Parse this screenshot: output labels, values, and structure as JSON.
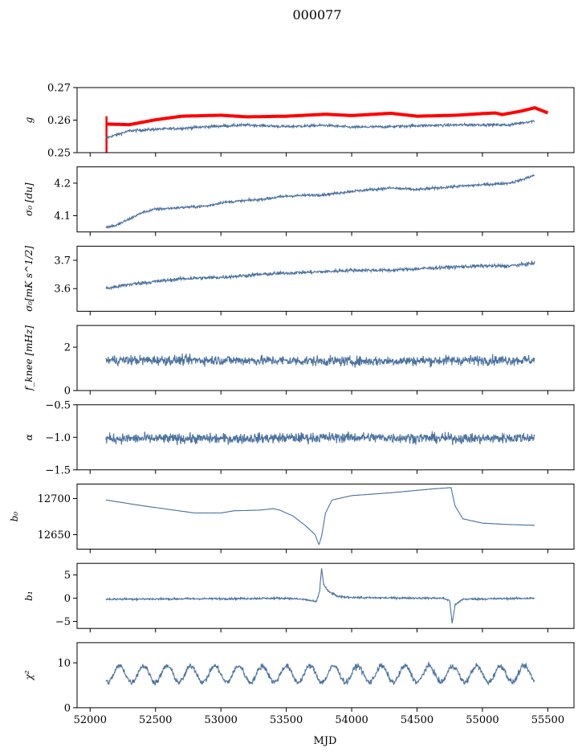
{
  "chart_data": {
    "type": "line",
    "title": "000077",
    "xlabel": "MJD",
    "xlim": [
      51900,
      55700
    ],
    "xticks": [
      52000,
      52500,
      53000,
      53500,
      54000,
      54500,
      55000,
      55500
    ],
    "x_range": [
      52120,
      55400
    ],
    "line_color": "#4c72a0",
    "highlight_color": "#ff0000",
    "panels": [
      {
        "id": "g",
        "ylabel": "g",
        "ylim": [
          0.25,
          0.27
        ],
        "yticks": [
          "0.25",
          "0.26",
          "0.27"
        ],
        "series": [
          {
            "name": "",
            "color": "#ff0000",
            "kind": "thick",
            "points": [
              [
                52120,
                0.2588
              ],
              [
                52300,
                0.2586
              ],
              [
                52500,
                0.2601
              ],
              [
                52700,
                0.2612
              ],
              [
                53000,
                0.2615
              ],
              [
                53200,
                0.261
              ],
              [
                53500,
                0.2612
              ],
              [
                53800,
                0.2618
              ],
              [
                54000,
                0.2614
              ],
              [
                54300,
                0.2621
              ],
              [
                54500,
                0.2612
              ],
              [
                54800,
                0.2615
              ],
              [
                55000,
                0.262
              ],
              [
                55100,
                0.2622
              ],
              [
                55150,
                0.2617
              ],
              [
                55300,
                0.2628
              ],
              [
                55400,
                0.2638
              ],
              [
                55500,
                0.2622
              ]
            ]
          },
          {
            "name": "",
            "color": "#4c72a0",
            "kind": "noisy",
            "noise": 0.0004,
            "points": [
              [
                52120,
                0.2545
              ],
              [
                52300,
                0.2567
              ],
              [
                52500,
                0.2572
              ],
              [
                52700,
                0.2575
              ],
              [
                53000,
                0.2582
              ],
              [
                53200,
                0.2585
              ],
              [
                53500,
                0.258
              ],
              [
                53800,
                0.2584
              ],
              [
                54000,
                0.2578
              ],
              [
                54300,
                0.258
              ],
              [
                54500,
                0.2583
              ],
              [
                54800,
                0.2585
              ],
              [
                55000,
                0.2586
              ],
              [
                55200,
                0.2585
              ],
              [
                55400,
                0.2598
              ]
            ]
          }
        ]
      },
      {
        "id": "sigma0-du",
        "ylabel": "σ₀ [du]",
        "ylim": [
          4.05,
          4.25
        ],
        "yticks": [
          "4.1",
          "4.2"
        ],
        "series": [
          {
            "name": "",
            "color": "#4c72a0",
            "kind": "noisy",
            "noise": 0.004,
            "points": [
              [
                52120,
                4.065
              ],
              [
                52200,
                4.07
              ],
              [
                52300,
                4.09
              ],
              [
                52400,
                4.11
              ],
              [
                52500,
                4.12
              ],
              [
                52700,
                4.125
              ],
              [
                52900,
                4.13
              ],
              [
                53000,
                4.14
              ],
              [
                53300,
                4.15
              ],
              [
                53500,
                4.16
              ],
              [
                53800,
                4.165
              ],
              [
                54000,
                4.175
              ],
              [
                54300,
                4.185
              ],
              [
                54500,
                4.18
              ],
              [
                54800,
                4.19
              ],
              [
                55000,
                4.195
              ],
              [
                55200,
                4.2
              ],
              [
                55300,
                4.21
              ],
              [
                55400,
                4.225
              ]
            ]
          }
        ]
      },
      {
        "id": "sigma0-mk",
        "ylabel": "σ₀[mK s^1/2]",
        "ylim": [
          3.52,
          3.75
        ],
        "yticks": [
          "3.6",
          "3.7"
        ],
        "series": [
          {
            "name": "",
            "color": "#4c72a0",
            "kind": "noisy",
            "noise": 0.006,
            "points": [
              [
                52120,
                3.6
              ],
              [
                52300,
                3.615
              ],
              [
                52500,
                3.625
              ],
              [
                52700,
                3.635
              ],
              [
                53000,
                3.64
              ],
              [
                53300,
                3.65
              ],
              [
                53500,
                3.655
              ],
              [
                53800,
                3.66
              ],
              [
                54000,
                3.665
              ],
              [
                54300,
                3.665
              ],
              [
                54500,
                3.67
              ],
              [
                54700,
                3.675
              ],
              [
                55000,
                3.68
              ],
              [
                55200,
                3.68
              ],
              [
                55400,
                3.69
              ]
            ]
          }
        ]
      },
      {
        "id": "fknee",
        "ylabel": "f_knee [mHz]",
        "ylim": [
          0,
          3
        ],
        "yticks": [
          "0",
          "2"
        ],
        "series": [
          {
            "name": "",
            "color": "#4c72a0",
            "kind": "noisy",
            "noise": 0.22,
            "points": [
              [
                52120,
                1.4
              ],
              [
                53000,
                1.4
              ],
              [
                54000,
                1.35
              ],
              [
                55000,
                1.4
              ],
              [
                55400,
                1.4
              ]
            ]
          }
        ]
      },
      {
        "id": "alpha",
        "ylabel": "α",
        "ylim": [
          -1.5,
          -0.5
        ],
        "yticks": [
          "−1.5",
          "−1.0",
          "−0.5"
        ],
        "series": [
          {
            "name": "",
            "color": "#4c72a0",
            "kind": "noisy",
            "noise": 0.075,
            "points": [
              [
                52120,
                -1.02
              ],
              [
                53000,
                -1.02
              ],
              [
                54000,
                -1.0
              ],
              [
                55000,
                -1.02
              ],
              [
                55400,
                -1.0
              ]
            ]
          }
        ]
      },
      {
        "id": "b0",
        "ylabel": "b₀",
        "ylim": [
          12630,
          12720
        ],
        "yticks": [
          "12650",
          "12700"
        ],
        "series": [
          {
            "name": "",
            "color": "#4c72a0",
            "kind": "smooth",
            "noise": 0.15,
            "points": [
              [
                52120,
                12698
              ],
              [
                52400,
                12690
              ],
              [
                52800,
                12680
              ],
              [
                53000,
                12680
              ],
              [
                53100,
                12683
              ],
              [
                53300,
                12684
              ],
              [
                53400,
                12686
              ],
              [
                53450,
                12684
              ],
              [
                53550,
                12676
              ],
              [
                53650,
                12662
              ],
              [
                53720,
                12650
              ],
              [
                53750,
                12636
              ],
              [
                53770,
                12648
              ],
              [
                53800,
                12680
              ],
              [
                53850,
                12698
              ],
              [
                54000,
                12704
              ],
              [
                54300,
                12708
              ],
              [
                54600,
                12713
              ],
              [
                54750,
                12715
              ],
              [
                54760,
                12715
              ],
              [
                54790,
                12690
              ],
              [
                54850,
                12672
              ],
              [
                55000,
                12666
              ],
              [
                55200,
                12664
              ],
              [
                55400,
                12663
              ]
            ]
          }
        ]
      },
      {
        "id": "b1",
        "ylabel": "b₁",
        "ylim": [
          -6.5,
          7.5
        ],
        "yticks": [
          "−5",
          "0",
          "5"
        ],
        "series": [
          {
            "name": "",
            "color": "#4c72a0",
            "kind": "noisy",
            "noise": 0.2,
            "points": [
              [
                52120,
                -0.2
              ],
              [
                53000,
                -0.1
              ],
              [
                53500,
                0.0
              ],
              [
                53650,
                -0.3
              ],
              [
                53730,
                -0.8
              ],
              [
                53755,
                1.5
              ],
              [
                53770,
                6.5
              ],
              [
                53785,
                3.0
              ],
              [
                53820,
                1.5
              ],
              [
                53900,
                0.3
              ],
              [
                54100,
                0.1
              ],
              [
                54700,
                0.0
              ],
              [
                54750,
                -0.5
              ],
              [
                54768,
                -5.5
              ],
              [
                54790,
                -1.5
              ],
              [
                54850,
                -0.2
              ],
              [
                55400,
                0.0
              ]
            ]
          }
        ]
      },
      {
        "id": "chi2",
        "ylabel": "χ²",
        "ylim": [
          0,
          14.5
        ],
        "yticks": [
          "0",
          "10"
        ],
        "series": [
          {
            "name": "",
            "color": "#4c72a0",
            "kind": "periodic",
            "noise": 0.6,
            "mean": 7.5,
            "amp": 1.8,
            "period": 182,
            "phase": 52180,
            "points": [
              [
                52120,
                7.5
              ],
              [
                55400,
                7.5
              ]
            ]
          }
        ]
      }
    ]
  }
}
